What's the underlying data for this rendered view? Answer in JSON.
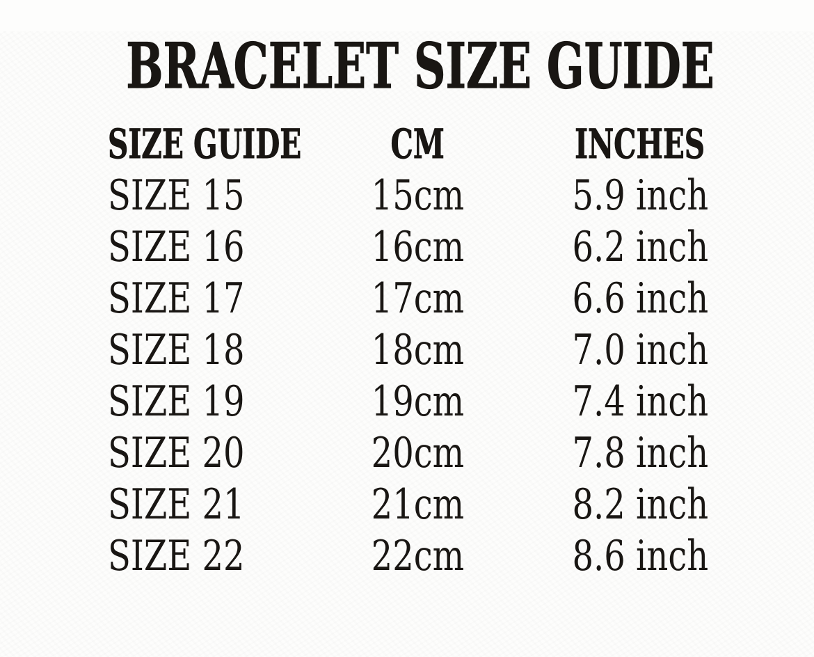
{
  "title": "BRACELET SIZE GUIDE",
  "table": {
    "headers": {
      "size": "SIZE GUIDE",
      "cm": "CM",
      "inches": "INCHES"
    },
    "rows": [
      {
        "size": "SIZE 15",
        "cm": "15cm",
        "inches": "5.9 inch"
      },
      {
        "size": "SIZE 16",
        "cm": "16cm",
        "inches": "6.2 inch"
      },
      {
        "size": "SIZE 17",
        "cm": "17cm",
        "inches": "6.6 inch"
      },
      {
        "size": "SIZE 18",
        "cm": "18cm",
        "inches": "7.0 inch"
      },
      {
        "size": "SIZE 19",
        "cm": "19cm",
        "inches": "7.4 inch"
      },
      {
        "size": "SIZE 20",
        "cm": "20cm",
        "inches": "7.8 inch"
      },
      {
        "size": "SIZE 21",
        "cm": "21cm",
        "inches": "8.2 inch"
      },
      {
        "size": "SIZE 22",
        "cm": "22cm",
        "inches": "8.6 inch"
      }
    ]
  },
  "colors": {
    "text": "#191613",
    "background": "#fdfdfc"
  }
}
